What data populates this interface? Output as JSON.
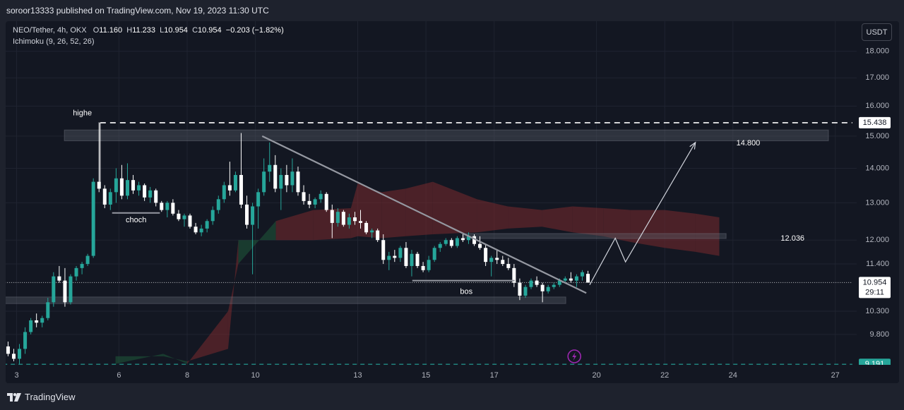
{
  "publisher_bar": {
    "text": "soroor13333 published on TradingView.com, Nov 19, 2023 11:30 UTC"
  },
  "legend": {
    "symbol": "NEO/Tether, 4h, OKX",
    "open_label": "O",
    "open": "11.160",
    "high_label": "H",
    "high": "11.233",
    "low_label": "L",
    "low": "10.954",
    "close_label": "C",
    "close": "10.954",
    "change": "−0.203 (−1.82%)",
    "indicator": "Ichimoku (9, 26, 52, 26)"
  },
  "unit_button": "USDT",
  "footer": {
    "brand": "TradingView"
  },
  "colors": {
    "background": "#131722",
    "up": "#26a69a",
    "down": "#ffffff",
    "cloud_bull": "#1f5a3a",
    "cloud_bear": "#7a2a2e",
    "zone": "#5d606b",
    "drawing": "#c8c9cc",
    "price_tag": "#ffffff",
    "last_price_tag": "#26a69a"
  },
  "chart_data": {
    "type": "candlestick",
    "title": "NEO/Tether, 4h, OKX",
    "indicator": "Ichimoku (9, 26, 52, 26)",
    "y_scale": "log",
    "ylim": [
      9.18,
      19.2
    ],
    "x_ticks": [
      {
        "d": 3,
        "label": "3"
      },
      {
        "d": 6,
        "label": "6"
      },
      {
        "d": 8,
        "label": "8"
      },
      {
        "d": 10,
        "label": "10"
      },
      {
        "d": 13,
        "label": "13"
      },
      {
        "d": 15,
        "label": "15"
      },
      {
        "d": 17,
        "label": "17"
      },
      {
        "d": 20,
        "label": "20"
      },
      {
        "d": 22,
        "label": "22"
      },
      {
        "d": 24,
        "label": "24"
      },
      {
        "d": 27,
        "label": "27"
      }
    ],
    "y_ticks": [
      "18.000",
      "17.000",
      "16.000",
      "15.000",
      "14.000",
      "13.000",
      "12.000",
      "11.400",
      "10.300",
      "9.800"
    ],
    "price_tags": [
      {
        "value": 15.438,
        "label": "15.438",
        "style": "white"
      },
      {
        "value": 10.954,
        "label": "10.954",
        "sub": "29:11",
        "style": "white-last"
      },
      {
        "value": 9.191,
        "label": "9.191",
        "style": "green"
      }
    ],
    "candles": [
      [
        2.75,
        9.55,
        9.65,
        9.35,
        9.4
      ],
      [
        2.917,
        9.4,
        9.5,
        9.25,
        9.3
      ],
      [
        3.083,
        9.3,
        9.6,
        9.2,
        9.5
      ],
      [
        3.25,
        9.5,
        9.95,
        9.4,
        9.85
      ],
      [
        3.417,
        9.85,
        10.15,
        9.8,
        10.1
      ],
      [
        3.583,
        10.1,
        10.25,
        9.95,
        10.05
      ],
      [
        3.75,
        10.05,
        10.2,
        9.95,
        10.15
      ],
      [
        3.917,
        10.15,
        10.6,
        10.1,
        10.5
      ],
      [
        4.083,
        10.5,
        11.2,
        10.4,
        11.1
      ],
      [
        4.25,
        11.1,
        11.35,
        10.95,
        11.0
      ],
      [
        4.417,
        11.0,
        11.3,
        10.4,
        10.5
      ],
      [
        4.583,
        10.5,
        11.15,
        10.45,
        11.1
      ],
      [
        4.75,
        11.1,
        11.35,
        11.0,
        11.3
      ],
      [
        4.917,
        11.3,
        11.45,
        11.15,
        11.4
      ],
      [
        5.083,
        11.4,
        11.65,
        11.35,
        11.6
      ],
      [
        5.25,
        11.6,
        13.7,
        11.55,
        13.6
      ],
      [
        5.417,
        13.6,
        15.45,
        13.3,
        13.4
      ],
      [
        5.583,
        13.4,
        13.5,
        12.85,
        12.95
      ],
      [
        5.75,
        12.95,
        13.4,
        12.8,
        13.3
      ],
      [
        5.917,
        13.3,
        14.0,
        13.0,
        13.7
      ],
      [
        6.083,
        13.7,
        14.1,
        13.1,
        13.2
      ],
      [
        6.25,
        13.2,
        14.15,
        13.1,
        13.65
      ],
      [
        6.417,
        13.65,
        13.8,
        13.25,
        13.35
      ],
      [
        6.583,
        13.35,
        13.6,
        13.2,
        13.5
      ],
      [
        6.75,
        13.5,
        13.55,
        13.05,
        13.15
      ],
      [
        6.917,
        13.15,
        13.45,
        13.0,
        13.35
      ],
      [
        7.083,
        13.35,
        13.4,
        12.9,
        13.0
      ],
      [
        7.25,
        13.0,
        13.05,
        12.75,
        12.8
      ],
      [
        7.417,
        12.8,
        13.05,
        12.6,
        13.0
      ],
      [
        7.583,
        13.0,
        13.1,
        12.65,
        12.7
      ],
      [
        7.75,
        12.7,
        12.8,
        12.5,
        12.55
      ],
      [
        7.917,
        12.55,
        12.7,
        12.35,
        12.65
      ],
      [
        8.083,
        12.65,
        12.7,
        12.3,
        12.35
      ],
      [
        8.25,
        12.35,
        12.45,
        12.15,
        12.2
      ],
      [
        8.417,
        12.2,
        12.4,
        12.1,
        12.3
      ],
      [
        8.583,
        12.3,
        12.55,
        12.2,
        12.5
      ],
      [
        8.75,
        12.5,
        12.9,
        12.4,
        12.8
      ],
      [
        8.917,
        12.8,
        13.2,
        12.7,
        13.1
      ],
      [
        9.083,
        13.1,
        13.6,
        13.0,
        13.5
      ],
      [
        9.25,
        13.5,
        14.2,
        13.2,
        13.35
      ],
      [
        9.417,
        13.35,
        13.9,
        13.3,
        13.8
      ],
      [
        9.583,
        13.8,
        15.1,
        12.85,
        12.95
      ],
      [
        9.75,
        12.95,
        13.2,
        12.3,
        12.4
      ],
      [
        9.917,
        12.4,
        13.0,
        11.15,
        12.9
      ],
      [
        10.083,
        12.9,
        13.4,
        12.3,
        13.3
      ],
      [
        10.25,
        13.3,
        14.3,
        13.2,
        13.9
      ],
      [
        10.417,
        13.9,
        14.8,
        13.6,
        14.1
      ],
      [
        10.583,
        14.1,
        14.4,
        13.3,
        13.4
      ],
      [
        10.75,
        13.4,
        14.0,
        12.8,
        13.8
      ],
      [
        10.917,
        13.8,
        14.1,
        13.3,
        13.5
      ],
      [
        11.083,
        13.5,
        14.3,
        13.3,
        13.9
      ],
      [
        11.25,
        13.9,
        14.05,
        13.2,
        13.3
      ],
      [
        11.417,
        13.3,
        13.5,
        12.95,
        13.05
      ],
      [
        11.583,
        13.05,
        13.25,
        12.85,
        12.95
      ],
      [
        11.75,
        12.95,
        13.15,
        12.85,
        13.1
      ],
      [
        11.917,
        13.1,
        13.35,
        13.0,
        13.25
      ],
      [
        12.083,
        13.25,
        13.3,
        12.75,
        12.8
      ],
      [
        12.25,
        12.8,
        12.95,
        12.05,
        12.45
      ],
      [
        12.417,
        12.45,
        12.85,
        12.35,
        12.75
      ],
      [
        12.583,
        12.75,
        12.8,
        12.35,
        12.4
      ],
      [
        12.75,
        12.4,
        12.7,
        12.3,
        12.6
      ],
      [
        12.917,
        12.6,
        12.75,
        12.4,
        12.5
      ],
      [
        13.083,
        12.5,
        12.8,
        12.3,
        12.45
      ],
      [
        13.25,
        12.45,
        12.5,
        12.15,
        12.2
      ],
      [
        13.417,
        12.2,
        12.3,
        12.05,
        12.25
      ],
      [
        13.583,
        12.25,
        12.3,
        11.95,
        12.0
      ],
      [
        13.75,
        12.0,
        12.15,
        11.4,
        11.5
      ],
      [
        13.917,
        11.5,
        11.7,
        11.25,
        11.6
      ],
      [
        14.083,
        11.6,
        11.75,
        11.45,
        11.55
      ],
      [
        14.25,
        11.55,
        11.85,
        11.45,
        11.8
      ],
      [
        14.417,
        11.8,
        11.95,
        11.3,
        11.35
      ],
      [
        14.583,
        11.35,
        11.75,
        11.1,
        11.65
      ],
      [
        14.75,
        11.65,
        11.7,
        11.3,
        11.35
      ],
      [
        14.917,
        11.35,
        11.45,
        11.2,
        11.25
      ],
      [
        15.083,
        11.25,
        11.6,
        11.2,
        11.5
      ],
      [
        15.25,
        11.5,
        11.85,
        11.45,
        11.8
      ],
      [
        15.417,
        11.8,
        11.95,
        11.7,
        11.9
      ],
      [
        15.583,
        11.9,
        12.05,
        11.85,
        12.0
      ],
      [
        15.75,
        12.0,
        12.05,
        11.8,
        11.85
      ],
      [
        15.917,
        11.85,
        12.1,
        11.8,
        12.05
      ],
      [
        16.083,
        12.05,
        12.15,
        11.95,
        12.0
      ],
      [
        16.25,
        12.0,
        12.2,
        11.9,
        12.1
      ],
      [
        16.417,
        12.1,
        12.15,
        11.85,
        11.9
      ],
      [
        16.583,
        11.9,
        12.1,
        11.75,
        11.8
      ],
      [
        16.75,
        11.8,
        11.9,
        11.35,
        11.45
      ],
      [
        16.917,
        11.45,
        11.6,
        11.1,
        11.55
      ],
      [
        17.083,
        11.55,
        11.75,
        11.4,
        11.5
      ],
      [
        17.25,
        11.5,
        11.6,
        11.35,
        11.4
      ],
      [
        17.417,
        11.4,
        11.55,
        11.25,
        11.3
      ],
      [
        17.583,
        11.3,
        11.4,
        10.85,
        10.95
      ],
      [
        17.75,
        10.95,
        11.05,
        10.55,
        10.65
      ],
      [
        17.917,
        10.65,
        10.9,
        10.6,
        10.85
      ],
      [
        18.083,
        10.85,
        11.05,
        10.8,
        11.0
      ],
      [
        18.25,
        11.0,
        11.1,
        10.85,
        10.9
      ],
      [
        18.417,
        10.9,
        10.95,
        10.5,
        10.75
      ],
      [
        18.583,
        10.75,
        10.9,
        10.7,
        10.85
      ],
      [
        18.75,
        10.85,
        10.95,
        10.8,
        10.9
      ],
      [
        18.917,
        10.9,
        11.05,
        10.85,
        11.0
      ],
      [
        19.083,
        11.0,
        11.1,
        10.95,
        11.05
      ],
      [
        19.25,
        11.05,
        11.2,
        10.95,
        11.0
      ],
      [
        19.417,
        11.0,
        11.15,
        10.85,
        11.1
      ],
      [
        19.583,
        11.1,
        11.25,
        11.0,
        11.2
      ],
      [
        19.75,
        11.16,
        11.233,
        10.954,
        10.954
      ]
    ],
    "cloud": {
      "x": [
        5.9,
        7.3,
        8.0,
        9.2,
        9.5,
        10.6,
        11.7,
        12.8,
        13.0,
        13.7,
        14.4,
        15.2,
        16.5,
        17.4,
        18.4,
        19.3,
        20.2,
        21.0,
        22.0,
        22.9,
        23.6
      ],
      "span_a": [
        9.35,
        9.35,
        9.25,
        9.5,
        12.0,
        12.0,
        12.0,
        12.05,
        12.1,
        12.05,
        12.1,
        12.15,
        12.2,
        12.3,
        12.35,
        12.2,
        12.1,
        11.95,
        11.8,
        11.7,
        11.6
      ],
      "span_b": [
        9.2,
        9.4,
        9.2,
        10.3,
        11.4,
        12.5,
        12.8,
        12.85,
        13.55,
        13.3,
        13.4,
        13.6,
        13.1,
        12.9,
        12.8,
        12.9,
        12.85,
        12.8,
        12.8,
        12.7,
        12.6
      ]
    },
    "zones": [
      {
        "from": 4.4,
        "to": 26.8,
        "low": 14.85,
        "high": 15.2,
        "label": "14.800"
      },
      {
        "from": 16.1,
        "to": 23.8,
        "low": 12.04,
        "high": 12.17,
        "label": "12.036"
      },
      {
        "from": 2.6,
        "to": 19.1,
        "low": 10.47,
        "high": 10.62
      }
    ],
    "levels": [
      {
        "value": 15.438,
        "from": 5.45,
        "to": 27.5,
        "style": "dashed-white"
      },
      {
        "value": 10.954,
        "from": 2.6,
        "to": 27.5,
        "style": "dotted-white"
      },
      {
        "value": 9.191,
        "from": 2.6,
        "to": 27.5,
        "style": "dashed-green"
      }
    ],
    "trendline": {
      "x1": 10.2,
      "y1": 15.0,
      "x2": 19.7,
      "y2": 10.71
    },
    "projection": [
      [
        19.8,
        10.9
      ],
      [
        20.55,
        12.05
      ],
      [
        20.85,
        11.45
      ],
      [
        22.9,
        14.8
      ]
    ],
    "bos_line": {
      "x1": 14.6,
      "x2": 17.6,
      "value": 11.0
    },
    "choch_line": {
      "x1": 5.8,
      "x2": 7.2,
      "value": 12.72
    },
    "annotations": [
      {
        "text": "highe",
        "x": 4.65,
        "y": 15.75
      },
      {
        "text": "choch",
        "x": 6.2,
        "y": 12.52
      },
      {
        "text": "bos",
        "x": 16.0,
        "y": 10.74
      },
      {
        "text": "14.800",
        "x": 24.1,
        "y": 14.77
      },
      {
        "text": "12.036",
        "x": 25.4,
        "y": 12.04
      }
    ]
  }
}
